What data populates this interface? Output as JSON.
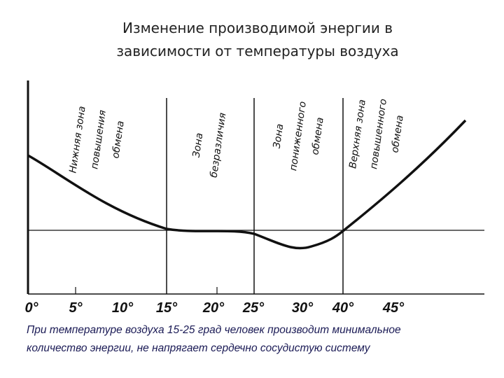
{
  "title": [
    "Изменение производимой энергии в",
    "зависимости от температуры воздуха"
  ],
  "zones": [
    {
      "lines": [
        "Нижняя зона",
        "повышения",
        "обмена"
      ]
    },
    {
      "lines": [
        "Зона",
        "безразличия"
      ]
    },
    {
      "lines": [
        "Зона",
        "пониженного",
        "обмена"
      ]
    },
    {
      "lines": [
        "Верхняя зона",
        "повышенного",
        "обмена"
      ]
    }
  ],
  "x_labels": [
    "0°",
    "5°",
    "10°",
    "15°",
    "20°",
    "25°",
    "30°",
    "40°",
    "45°"
  ],
  "caption": [
    "При температуре воздуха 15-25 град человек производит минимальное",
    "количество энергии, не напрягает сердечно сосудистую систему"
  ]
}
